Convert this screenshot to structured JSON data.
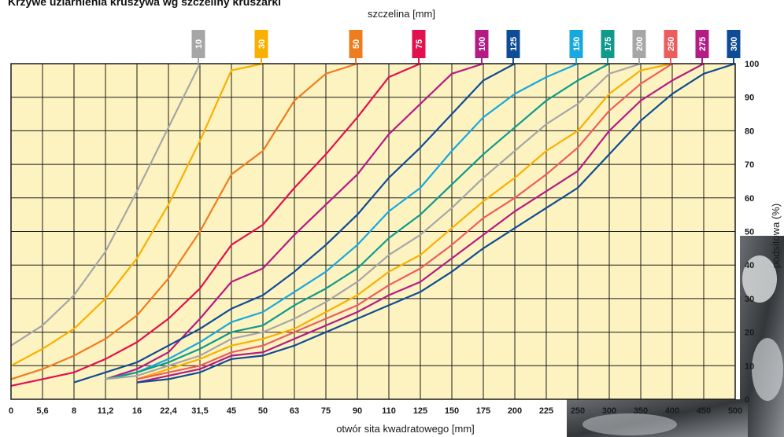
{
  "page_title": "Krzywe uziarnienia kruszywa wg szczeliny kruszarki",
  "chart_data": {
    "type": "line",
    "title": "",
    "x_top_label": "szczelina [mm]",
    "xlabel": "otwór sita kwadratowego [mm]",
    "ylabel": "podsitowa (%)",
    "x_ticks": [
      "0",
      "5,6",
      "8",
      "11,2",
      "16",
      "22,4",
      "31,5",
      "45",
      "50",
      "63",
      "75",
      "90",
      "110",
      "125",
      "150",
      "175",
      "200",
      "225",
      "250",
      "300",
      "350",
      "400",
      "450",
      "500"
    ],
    "y_ticks": [
      0,
      10,
      20,
      30,
      40,
      50,
      60,
      70,
      80,
      90,
      100
    ],
    "ylim": [
      0,
      100
    ],
    "grid": true,
    "background": "#fdf3c0",
    "series": [
      {
        "name": "10",
        "color": "#a6a6a6",
        "points": [
          [
            0,
            16
          ],
          [
            1,
            22
          ],
          [
            2,
            31
          ],
          [
            3,
            44
          ],
          [
            4,
            62
          ],
          [
            5,
            81
          ],
          [
            6,
            100
          ]
        ]
      },
      {
        "name": "30",
        "color": "#f9b000",
        "points": [
          [
            0,
            10
          ],
          [
            1,
            15
          ],
          [
            2,
            21
          ],
          [
            3,
            30
          ],
          [
            4,
            42
          ],
          [
            5,
            58
          ],
          [
            6,
            77
          ],
          [
            7,
            98
          ],
          [
            8,
            100
          ]
        ]
      },
      {
        "name": "50",
        "color": "#ee7d20",
        "points": [
          [
            0,
            6
          ],
          [
            1,
            9
          ],
          [
            2,
            13
          ],
          [
            3,
            18
          ],
          [
            4,
            25
          ],
          [
            5,
            36
          ],
          [
            6,
            50
          ],
          [
            7,
            67
          ],
          [
            8,
            74
          ],
          [
            9,
            89
          ],
          [
            10,
            97
          ],
          [
            11,
            100
          ]
        ]
      },
      {
        "name": "75",
        "color": "#e2104c",
        "points": [
          [
            0,
            4
          ],
          [
            1,
            6
          ],
          [
            2,
            8
          ],
          [
            3,
            12
          ],
          [
            4,
            17
          ],
          [
            5,
            24
          ],
          [
            6,
            33
          ],
          [
            7,
            46
          ],
          [
            8,
            52
          ],
          [
            9,
            63
          ],
          [
            10,
            73
          ],
          [
            11,
            84
          ],
          [
            12,
            96
          ],
          [
            13,
            100
          ]
        ]
      },
      {
        "name": "100",
        "color": "#b51b84",
        "points": [
          [
            3,
            6
          ],
          [
            4,
            9
          ],
          [
            5,
            14
          ],
          [
            6,
            24
          ],
          [
            7,
            35
          ],
          [
            8,
            39
          ],
          [
            9,
            49
          ],
          [
            10,
            58
          ],
          [
            11,
            67
          ],
          [
            12,
            79
          ],
          [
            13,
            88
          ],
          [
            14,
            97
          ],
          [
            15,
            100
          ]
        ]
      },
      {
        "name": "125",
        "color": "#0f4c96",
        "points": [
          [
            2,
            5
          ],
          [
            3,
            8
          ],
          [
            4,
            11
          ],
          [
            5,
            16
          ],
          [
            6,
            21
          ],
          [
            7,
            27
          ],
          [
            8,
            31
          ],
          [
            9,
            38
          ],
          [
            10,
            46
          ],
          [
            11,
            55
          ],
          [
            12,
            66
          ],
          [
            13,
            75
          ],
          [
            14,
            85
          ],
          [
            15,
            95
          ],
          [
            16,
            100
          ]
        ]
      },
      {
        "name": "150",
        "color": "#17a8dd",
        "points": [
          [
            3,
            6
          ],
          [
            4,
            8
          ],
          [
            5,
            12
          ],
          [
            6,
            17
          ],
          [
            7,
            23
          ],
          [
            8,
            26
          ],
          [
            9,
            32
          ],
          [
            10,
            38
          ],
          [
            11,
            46
          ],
          [
            12,
            56
          ],
          [
            13,
            63
          ],
          [
            14,
            74
          ],
          [
            15,
            84
          ],
          [
            16,
            91
          ],
          [
            17,
            96
          ],
          [
            18,
            100
          ]
        ]
      },
      {
        "name": "175",
        "color": "#0f9a8b",
        "points": [
          [
            3,
            6
          ],
          [
            4,
            8
          ],
          [
            5,
            11
          ],
          [
            6,
            15
          ],
          [
            7,
            20
          ],
          [
            8,
            22
          ],
          [
            9,
            28
          ],
          [
            10,
            33
          ],
          [
            11,
            39
          ],
          [
            12,
            48
          ],
          [
            13,
            55
          ],
          [
            14,
            64
          ],
          [
            15,
            73
          ],
          [
            16,
            81
          ],
          [
            17,
            89
          ],
          [
            18,
            95
          ],
          [
            19,
            100
          ]
        ]
      },
      {
        "name": "200",
        "color": "#a6a6a6",
        "points": [
          [
            3,
            6
          ],
          [
            4,
            7
          ],
          [
            5,
            10
          ],
          [
            6,
            13
          ],
          [
            7,
            18
          ],
          [
            8,
            20
          ],
          [
            9,
            24
          ],
          [
            10,
            29
          ],
          [
            11,
            35
          ],
          [
            12,
            43
          ],
          [
            13,
            49
          ],
          [
            14,
            57
          ],
          [
            15,
            66
          ],
          [
            16,
            74
          ],
          [
            17,
            82
          ],
          [
            18,
            88
          ],
          [
            19,
            97
          ],
          [
            20,
            100
          ]
        ]
      },
      {
        "name": "225",
        "color": "#f9b000",
        "points": [
          [
            4,
            6
          ],
          [
            5,
            9
          ],
          [
            6,
            12
          ],
          [
            7,
            16
          ],
          [
            8,
            18
          ],
          [
            9,
            21
          ],
          [
            10,
            26
          ],
          [
            11,
            31
          ],
          [
            12,
            38
          ],
          [
            13,
            43
          ],
          [
            14,
            51
          ],
          [
            15,
            59
          ],
          [
            16,
            66
          ],
          [
            17,
            74
          ],
          [
            18,
            80
          ],
          [
            19,
            91
          ],
          [
            20,
            98
          ],
          [
            21,
            100
          ]
        ]
      },
      {
        "name": "250",
        "color": "#ec5d5d",
        "points": [
          [
            4,
            6
          ],
          [
            5,
            8
          ],
          [
            6,
            10
          ],
          [
            7,
            14
          ],
          [
            8,
            16
          ],
          [
            9,
            20
          ],
          [
            10,
            24
          ],
          [
            11,
            28
          ],
          [
            12,
            34
          ],
          [
            13,
            39
          ],
          [
            14,
            46
          ],
          [
            15,
            54
          ],
          [
            16,
            60
          ],
          [
            17,
            67
          ],
          [
            18,
            75
          ],
          [
            19,
            86
          ],
          [
            20,
            94
          ],
          [
            21,
            100
          ]
        ]
      },
      {
        "name": "275",
        "color": "#b51b84",
        "points": [
          [
            4,
            5
          ],
          [
            5,
            7
          ],
          [
            6,
            9
          ],
          [
            7,
            13
          ],
          [
            8,
            14
          ],
          [
            9,
            18
          ],
          [
            10,
            22
          ],
          [
            11,
            26
          ],
          [
            12,
            31
          ],
          [
            13,
            35
          ],
          [
            14,
            42
          ],
          [
            15,
            49
          ],
          [
            16,
            56
          ],
          [
            17,
            62
          ],
          [
            18,
            68
          ],
          [
            19,
            80
          ],
          [
            20,
            89
          ],
          [
            21,
            95
          ],
          [
            22,
            100
          ]
        ]
      },
      {
        "name": "300",
        "color": "#0f4c96",
        "points": [
          [
            4,
            5
          ],
          [
            5,
            6
          ],
          [
            6,
            8
          ],
          [
            7,
            12
          ],
          [
            8,
            13
          ],
          [
            9,
            16
          ],
          [
            10,
            20
          ],
          [
            11,
            24
          ],
          [
            12,
            28
          ],
          [
            13,
            32
          ],
          [
            14,
            38
          ],
          [
            15,
            45
          ],
          [
            16,
            51
          ],
          [
            17,
            57
          ],
          [
            18,
            63
          ],
          [
            19,
            73
          ],
          [
            20,
            83
          ],
          [
            21,
            91
          ],
          [
            22,
            97
          ],
          [
            23,
            100
          ]
        ]
      }
    ]
  }
}
